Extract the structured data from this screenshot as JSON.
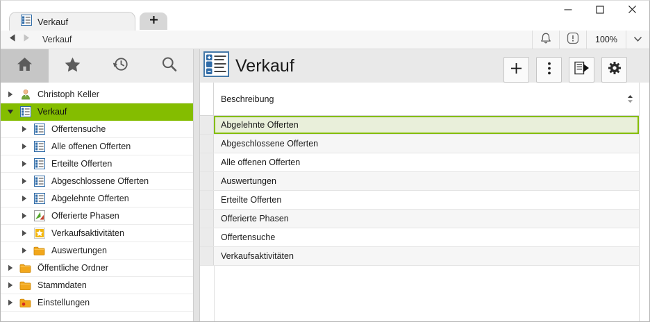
{
  "tabs": {
    "active_label": "Verkauf",
    "active_icon": "list-icon",
    "new_tab_label": "+"
  },
  "window_controls": {
    "minimize": "minimize-icon",
    "maximize": "maximize-icon",
    "close": "close-icon"
  },
  "navbar": {
    "breadcrumb": "Verkauf",
    "zoom_level": "100%",
    "right_icons": [
      "bell-icon",
      "info-icon",
      "chevron-down-icon"
    ]
  },
  "sidebar": {
    "toolbar": [
      {
        "name": "home-button",
        "icon": "home-icon",
        "active": true
      },
      {
        "name": "favorites-button",
        "icon": "favorite-star-icon",
        "active": false
      },
      {
        "name": "history-button",
        "icon": "history-icon",
        "active": false
      },
      {
        "name": "search-button",
        "icon": "search-icon",
        "active": false
      }
    ],
    "tree": [
      {
        "label": "Christoph Keller",
        "icon": "person-icon",
        "level": 0,
        "expander": "collapsed",
        "selected": false
      },
      {
        "label": "Verkauf",
        "icon": "list-icon",
        "level": 0,
        "expander": "expanded",
        "selected": true
      },
      {
        "label": "Offertensuche",
        "icon": "list-icon",
        "level": 1,
        "expander": "collapsed",
        "selected": false
      },
      {
        "label": "Alle offenen Offerten",
        "icon": "list-icon",
        "level": 1,
        "expander": "collapsed",
        "selected": false
      },
      {
        "label": "Erteilte Offerten",
        "icon": "list-icon",
        "level": 1,
        "expander": "collapsed",
        "selected": false
      },
      {
        "label": "Abgeschlossene Offerten",
        "icon": "list-icon",
        "level": 1,
        "expander": "collapsed",
        "selected": false
      },
      {
        "label": "Abgelehnte Offerten",
        "icon": "list-icon",
        "level": 1,
        "expander": "collapsed",
        "selected": false
      },
      {
        "label": "Offerierte Phasen",
        "icon": "phases-icon",
        "level": 1,
        "expander": "collapsed",
        "selected": false
      },
      {
        "label": "Verkaufsaktivitäten",
        "icon": "activity-star-icon",
        "level": 1,
        "expander": "collapsed",
        "selected": false
      },
      {
        "label": "Auswertungen",
        "icon": "folder-icon",
        "level": 1,
        "expander": "collapsed",
        "selected": false
      },
      {
        "label": "Öffentliche Ordner",
        "icon": "folder-icon",
        "level": 0,
        "expander": "collapsed",
        "selected": false
      },
      {
        "label": "Stammdaten",
        "icon": "folder-icon",
        "level": 0,
        "expander": "collapsed",
        "selected": false
      },
      {
        "label": "Einstellungen",
        "icon": "settings-folder-icon",
        "level": 0,
        "expander": "collapsed",
        "selected": false
      }
    ]
  },
  "main": {
    "title": "Verkauf",
    "title_icon": "list-large-icon",
    "toolbar": [
      {
        "name": "add-button",
        "icon": "plus-icon"
      },
      {
        "name": "more-button",
        "icon": "kebab-icon"
      },
      {
        "name": "report-button",
        "icon": "report-icon"
      },
      {
        "name": "settings-button",
        "icon": "gear-icon"
      }
    ],
    "table": {
      "columns": [
        "Beschreibung"
      ],
      "rows": [
        {
          "label": "Abgelehnte Offerten",
          "selected": true
        },
        {
          "label": "Abgeschlossene Offerten",
          "selected": false
        },
        {
          "label": "Alle offenen Offerten",
          "selected": false
        },
        {
          "label": "Auswertungen",
          "selected": false
        },
        {
          "label": "Erteilte Offerten",
          "selected": false
        },
        {
          "label": "Offerierte Phasen",
          "selected": false
        },
        {
          "label": "Offertensuche",
          "selected": false
        },
        {
          "label": "Verkaufsaktivitäten",
          "selected": false
        }
      ]
    }
  },
  "colors": {
    "accent_green": "#84bd00",
    "selected_row_fill": "#e9efda"
  }
}
